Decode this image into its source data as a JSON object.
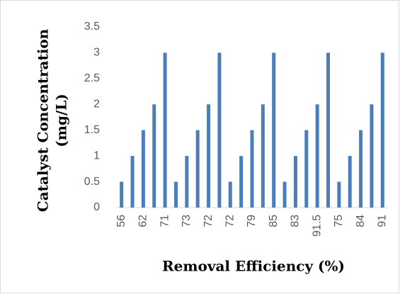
{
  "chart_data": {
    "type": "bar",
    "x_label": "Removal Efficiency (%)",
    "y_label": [
      "Catalyst Concentration",
      "(mg/L)"
    ],
    "categories": [
      "56",
      null,
      "62",
      null,
      "71",
      null,
      "73",
      null,
      "72",
      null,
      "72",
      null,
      "79",
      null,
      "85",
      null,
      "83",
      null,
      "91.5",
      null,
      "75",
      null,
      "84",
      null,
      "91"
    ],
    "values": [
      0.5,
      1,
      1.5,
      2,
      3,
      0.5,
      1,
      1.5,
      2,
      3,
      0.5,
      1,
      1.5,
      2,
      3,
      0.5,
      1,
      1.5,
      2,
      3,
      0.5,
      1,
      1.5,
      2,
      3
    ],
    "color": "#4a7ebb",
    "ylim": [
      0,
      3.5
    ],
    "yticks": [
      0,
      0.5,
      1,
      1.5,
      2,
      2.5,
      3,
      3.5
    ],
    "grid": false
  }
}
